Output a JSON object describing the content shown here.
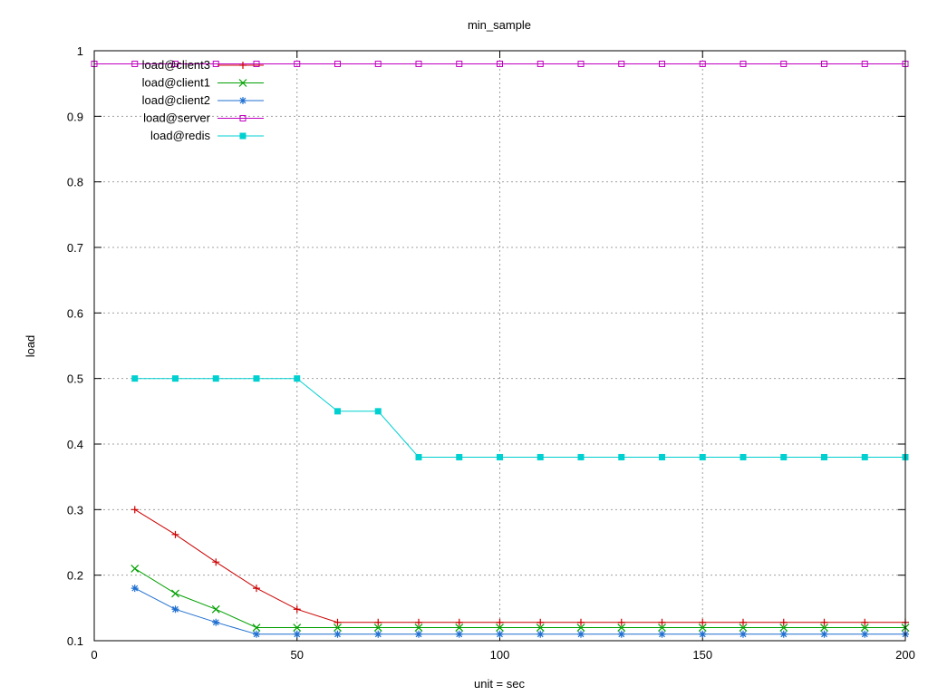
{
  "chart_data": {
    "type": "line",
    "title": "min_sample",
    "xlabel": "unit = sec",
    "ylabel": "load",
    "xlim": [
      0,
      200
    ],
    "ylim": [
      0.1,
      1
    ],
    "x_ticks": [
      0,
      50,
      100,
      150,
      200
    ],
    "y_ticks": [
      0.1,
      0.2,
      0.3,
      0.4,
      0.5,
      0.6,
      0.7,
      0.8,
      0.9,
      1
    ],
    "grid": true,
    "legend_position": "top-left",
    "series": [
      {
        "name": "load@client3",
        "color": "#cc0000",
        "marker": "plus",
        "points": [
          [
            10,
            0.3
          ],
          [
            20,
            0.262
          ],
          [
            30,
            0.22
          ],
          [
            40,
            0.18
          ],
          [
            50,
            0.148
          ],
          [
            60,
            0.128
          ],
          [
            70,
            0.128
          ],
          [
            80,
            0.128
          ],
          [
            90,
            0.128
          ],
          [
            100,
            0.128
          ],
          [
            110,
            0.128
          ],
          [
            120,
            0.128
          ],
          [
            130,
            0.128
          ],
          [
            140,
            0.128
          ],
          [
            150,
            0.128
          ],
          [
            160,
            0.128
          ],
          [
            170,
            0.128
          ],
          [
            180,
            0.128
          ],
          [
            190,
            0.128
          ],
          [
            200,
            0.128
          ]
        ]
      },
      {
        "name": "load@client1",
        "color": "#00a000",
        "marker": "cross",
        "points": [
          [
            10,
            0.21
          ],
          [
            20,
            0.172
          ],
          [
            30,
            0.148
          ],
          [
            40,
            0.12
          ],
          [
            50,
            0.12
          ],
          [
            60,
            0.12
          ],
          [
            70,
            0.12
          ],
          [
            80,
            0.12
          ],
          [
            90,
            0.12
          ],
          [
            100,
            0.12
          ],
          [
            110,
            0.12
          ],
          [
            120,
            0.12
          ],
          [
            130,
            0.12
          ],
          [
            140,
            0.12
          ],
          [
            150,
            0.12
          ],
          [
            160,
            0.12
          ],
          [
            170,
            0.12
          ],
          [
            180,
            0.12
          ],
          [
            190,
            0.12
          ],
          [
            200,
            0.12
          ]
        ]
      },
      {
        "name": "load@client2",
        "color": "#1f6fd0",
        "marker": "star",
        "points": [
          [
            10,
            0.18
          ],
          [
            20,
            0.148
          ],
          [
            30,
            0.128
          ],
          [
            40,
            0.11
          ],
          [
            50,
            0.11
          ],
          [
            60,
            0.11
          ],
          [
            70,
            0.11
          ],
          [
            80,
            0.11
          ],
          [
            90,
            0.11
          ],
          [
            100,
            0.11
          ],
          [
            110,
            0.11
          ],
          [
            120,
            0.11
          ],
          [
            130,
            0.11
          ],
          [
            140,
            0.11
          ],
          [
            150,
            0.11
          ],
          [
            160,
            0.11
          ],
          [
            170,
            0.11
          ],
          [
            180,
            0.11
          ],
          [
            190,
            0.11
          ],
          [
            200,
            0.11
          ]
        ]
      },
      {
        "name": "load@server",
        "color": "#c000c0",
        "marker": "square-open",
        "points": [
          [
            0,
            0.98
          ],
          [
            10,
            0.98
          ],
          [
            20,
            0.98
          ],
          [
            30,
            0.98
          ],
          [
            40,
            0.98
          ],
          [
            50,
            0.98
          ],
          [
            60,
            0.98
          ],
          [
            70,
            0.98
          ],
          [
            80,
            0.98
          ],
          [
            90,
            0.98
          ],
          [
            100,
            0.98
          ],
          [
            110,
            0.98
          ],
          [
            120,
            0.98
          ],
          [
            130,
            0.98
          ],
          [
            140,
            0.98
          ],
          [
            150,
            0.98
          ],
          [
            160,
            0.98
          ],
          [
            170,
            0.98
          ],
          [
            180,
            0.98
          ],
          [
            190,
            0.98
          ],
          [
            200,
            0.98
          ]
        ]
      },
      {
        "name": "load@redis",
        "color": "#00d0d0",
        "marker": "square-filled",
        "points": [
          [
            10,
            0.5
          ],
          [
            20,
            0.5
          ],
          [
            30,
            0.5
          ],
          [
            40,
            0.5
          ],
          [
            50,
            0.5
          ],
          [
            60,
            0.45
          ],
          [
            70,
            0.45
          ],
          [
            80,
            0.38
          ],
          [
            90,
            0.38
          ],
          [
            100,
            0.38
          ],
          [
            110,
            0.38
          ],
          [
            120,
            0.38
          ],
          [
            130,
            0.38
          ],
          [
            140,
            0.38
          ],
          [
            150,
            0.38
          ],
          [
            160,
            0.38
          ],
          [
            170,
            0.38
          ],
          [
            180,
            0.38
          ],
          [
            190,
            0.38
          ],
          [
            200,
            0.38
          ]
        ]
      }
    ]
  }
}
